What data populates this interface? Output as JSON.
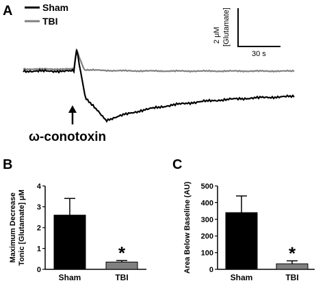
{
  "panel_a": {
    "letter": "A",
    "legend": [
      {
        "label": "Sham",
        "color": "#000000"
      },
      {
        "label": "TBI",
        "color": "#808080"
      }
    ],
    "scale_bar": {
      "vertical_value": "2 μM",
      "vertical_unit": "[Glutamate]",
      "horizontal_label": "30 s"
    },
    "drug_label": "ω-conotoxin"
  },
  "chart_data": [
    {
      "type": "bar",
      "panel": "B",
      "categories": [
        "Sham",
        "TBI"
      ],
      "values": [
        2.6,
        0.35
      ],
      "errors": [
        0.8,
        0.07
      ],
      "colors": [
        "#000000",
        "#808080"
      ],
      "significance": [
        "",
        "*"
      ],
      "ylabel_line1": "Maximum Decrease",
      "ylabel_line2": "Tonic [Glutamate] μM",
      "ylim": [
        0,
        4
      ],
      "yticks": [
        "0",
        "1",
        "2",
        "3",
        "4"
      ]
    },
    {
      "type": "bar",
      "panel": "C",
      "categories": [
        "Sham",
        "TBI"
      ],
      "values": [
        340,
        33
      ],
      "errors": [
        100,
        18
      ],
      "colors": [
        "#000000",
        "#808080"
      ],
      "significance": [
        "",
        "*"
      ],
      "ylabel_line1": "Area Below Baseline (AU)",
      "ylim": [
        0,
        500
      ],
      "yticks": [
        "0",
        "100",
        "200",
        "300",
        "400",
        "500"
      ]
    }
  ]
}
